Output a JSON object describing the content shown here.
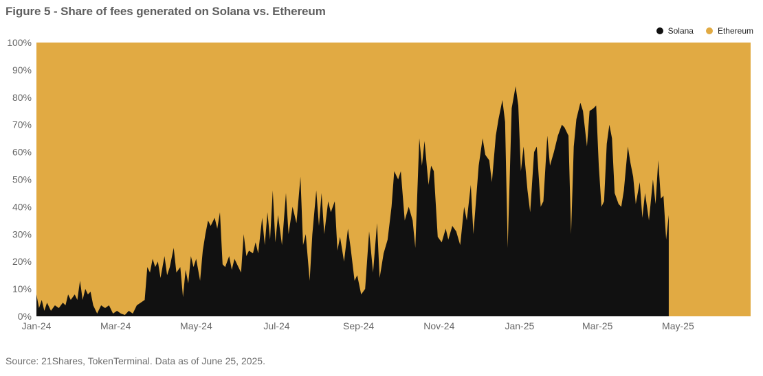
{
  "title": "Figure 5 - Share of fees generated on Solana vs. Ethereum",
  "source": "Source: 21Shares, TokenTerminal. Data as of June 25, 2025.",
  "colors": {
    "solana": "#111111",
    "ethereum": "#E1AA43",
    "axis_text": "#666666"
  },
  "chart_data": {
    "type": "area",
    "stacked": true,
    "normalized_100": true,
    "title": "Figure 5 - Share of fees generated on Solana vs. Ethereum",
    "xlabel": "",
    "ylabel": "",
    "ylim": [
      0,
      100
    ],
    "y_ticks": [
      "0%",
      "10%",
      "20%",
      "30%",
      "40%",
      "50%",
      "60%",
      "70%",
      "80%",
      "90%",
      "100%"
    ],
    "x_ticks": [
      "Jan-24",
      "Mar-24",
      "May-24",
      "Jul-24",
      "Sep-24",
      "Nov-24",
      "Jan-25",
      "Mar-25",
      "May-25"
    ],
    "x_range": [
      "2024-01-01",
      "2025-06-25"
    ],
    "grid": false,
    "legend_position": "top-right",
    "series_names": [
      "Solana",
      "Ethereum"
    ],
    "solana_share_points": [
      [
        "2024-01-01",
        8
      ],
      [
        "2024-01-03",
        3
      ],
      [
        "2024-01-05",
        6
      ],
      [
        "2024-01-07",
        2
      ],
      [
        "2024-01-09",
        5
      ],
      [
        "2024-01-12",
        2
      ],
      [
        "2024-01-15",
        4
      ],
      [
        "2024-01-18",
        3
      ],
      [
        "2024-01-21",
        5
      ],
      [
        "2024-01-23",
        4
      ],
      [
        "2024-01-25",
        8
      ],
      [
        "2024-01-27",
        6
      ],
      [
        "2024-01-30",
        8
      ],
      [
        "2024-02-01",
        6
      ],
      [
        "2024-02-03",
        13
      ],
      [
        "2024-02-05",
        6
      ],
      [
        "2024-02-07",
        10
      ],
      [
        "2024-02-09",
        8
      ],
      [
        "2024-02-11",
        9
      ],
      [
        "2024-02-13",
        4
      ],
      [
        "2024-02-16",
        1
      ],
      [
        "2024-02-19",
        4
      ],
      [
        "2024-02-22",
        3
      ],
      [
        "2024-02-25",
        4
      ],
      [
        "2024-02-28",
        1
      ],
      [
        "2024-03-02",
        2
      ],
      [
        "2024-03-05",
        1
      ],
      [
        "2024-03-08",
        0.5
      ],
      [
        "2024-03-11",
        2
      ],
      [
        "2024-03-14",
        1
      ],
      [
        "2024-03-17",
        4
      ],
      [
        "2024-03-20",
        5
      ],
      [
        "2024-03-23",
        6
      ],
      [
        "2024-03-25",
        18
      ],
      [
        "2024-03-27",
        16
      ],
      [
        "2024-03-29",
        21
      ],
      [
        "2024-03-31",
        18
      ],
      [
        "2024-04-02",
        20
      ],
      [
        "2024-04-04",
        14
      ],
      [
        "2024-04-07",
        22
      ],
      [
        "2024-04-09",
        15
      ],
      [
        "2024-04-11",
        18
      ],
      [
        "2024-04-14",
        25
      ],
      [
        "2024-04-16",
        16
      ],
      [
        "2024-04-19",
        18
      ],
      [
        "2024-04-21",
        7
      ],
      [
        "2024-04-23",
        17
      ],
      [
        "2024-04-25",
        12
      ],
      [
        "2024-04-27",
        22
      ],
      [
        "2024-04-29",
        18
      ],
      [
        "2024-05-01",
        21
      ],
      [
        "2024-05-04",
        13
      ],
      [
        "2024-05-06",
        24
      ],
      [
        "2024-05-08",
        30
      ],
      [
        "2024-05-10",
        35
      ],
      [
        "2024-05-12",
        33
      ],
      [
        "2024-05-15",
        36
      ],
      [
        "2024-05-17",
        32
      ],
      [
        "2024-05-19",
        38
      ],
      [
        "2024-05-21",
        19
      ],
      [
        "2024-05-23",
        18
      ],
      [
        "2024-05-26",
        22
      ],
      [
        "2024-05-28",
        17
      ],
      [
        "2024-05-30",
        21
      ],
      [
        "2024-06-01",
        19
      ],
      [
        "2024-06-04",
        16
      ],
      [
        "2024-06-06",
        30
      ],
      [
        "2024-06-08",
        22
      ],
      [
        "2024-06-10",
        24
      ],
      [
        "2024-06-13",
        23
      ],
      [
        "2024-06-15",
        27
      ],
      [
        "2024-06-17",
        23
      ],
      [
        "2024-06-20",
        36
      ],
      [
        "2024-06-22",
        26
      ],
      [
        "2024-06-24",
        38
      ],
      [
        "2024-06-26",
        28
      ],
      [
        "2024-06-28",
        46
      ],
      [
        "2024-06-30",
        27
      ],
      [
        "2024-07-02",
        37
      ],
      [
        "2024-07-05",
        26
      ],
      [
        "2024-07-08",
        45
      ],
      [
        "2024-07-10",
        30
      ],
      [
        "2024-07-13",
        40
      ],
      [
        "2024-07-16",
        34
      ],
      [
        "2024-07-19",
        51
      ],
      [
        "2024-07-21",
        26
      ],
      [
        "2024-07-23",
        30
      ],
      [
        "2024-07-26",
        13
      ],
      [
        "2024-07-28",
        30
      ],
      [
        "2024-07-31",
        46
      ],
      [
        "2024-08-02",
        33
      ],
      [
        "2024-08-04",
        45
      ],
      [
        "2024-08-06",
        30
      ],
      [
        "2024-08-09",
        42
      ],
      [
        "2024-08-11",
        38
      ],
      [
        "2024-08-14",
        42
      ],
      [
        "2024-08-16",
        24
      ],
      [
        "2024-08-18",
        29
      ],
      [
        "2024-08-21",
        20
      ],
      [
        "2024-08-24",
        32
      ],
      [
        "2024-08-26",
        25
      ],
      [
        "2024-08-29",
        13
      ],
      [
        "2024-08-31",
        15
      ],
      [
        "2024-09-03",
        8
      ],
      [
        "2024-09-06",
        10
      ],
      [
        "2024-09-09",
        31
      ],
      [
        "2024-09-12",
        16
      ],
      [
        "2024-09-15",
        34
      ],
      [
        "2024-09-17",
        14
      ],
      [
        "2024-09-20",
        23
      ],
      [
        "2024-09-23",
        28
      ],
      [
        "2024-09-26",
        40
      ],
      [
        "2024-09-28",
        53
      ],
      [
        "2024-10-01",
        50
      ],
      [
        "2024-10-03",
        53
      ],
      [
        "2024-10-06",
        35
      ],
      [
        "2024-10-09",
        40
      ],
      [
        "2024-10-12",
        35
      ],
      [
        "2024-10-14",
        25
      ],
      [
        "2024-10-17",
        65
      ],
      [
        "2024-10-19",
        55
      ],
      [
        "2024-10-21",
        64
      ],
      [
        "2024-10-24",
        48
      ],
      [
        "2024-10-26",
        55
      ],
      [
        "2024-10-28",
        53
      ],
      [
        "2024-10-31",
        29
      ],
      [
        "2024-11-03",
        27
      ],
      [
        "2024-11-06",
        32
      ],
      [
        "2024-11-08",
        28
      ],
      [
        "2024-11-11",
        33
      ],
      [
        "2024-11-14",
        31
      ],
      [
        "2024-11-17",
        26
      ],
      [
        "2024-11-20",
        40
      ],
      [
        "2024-11-22",
        35
      ],
      [
        "2024-11-25",
        48
      ],
      [
        "2024-11-27",
        30
      ],
      [
        "2024-12-01",
        55
      ],
      [
        "2024-12-04",
        65
      ],
      [
        "2024-12-06",
        59
      ],
      [
        "2024-12-09",
        57
      ],
      [
        "2024-12-11",
        49
      ],
      [
        "2024-12-14",
        66
      ],
      [
        "2024-12-16",
        72
      ],
      [
        "2024-12-19",
        79
      ],
      [
        "2024-12-21",
        71
      ],
      [
        "2024-12-23",
        25
      ],
      [
        "2024-12-26",
        76
      ],
      [
        "2024-12-29",
        84
      ],
      [
        "2024-12-31",
        77
      ],
      [
        "2025-01-02",
        53
      ],
      [
        "2025-01-04",
        62
      ],
      [
        "2025-01-07",
        46
      ],
      [
        "2025-01-09",
        38
      ],
      [
        "2025-01-12",
        60
      ],
      [
        "2025-01-14",
        62
      ],
      [
        "2025-01-17",
        40
      ],
      [
        "2025-01-19",
        42
      ],
      [
        "2025-01-22",
        66
      ],
      [
        "2025-01-24",
        55
      ],
      [
        "2025-01-27",
        60
      ],
      [
        "2025-01-30",
        66
      ],
      [
        "2025-02-02",
        70
      ],
      [
        "2025-02-04",
        69
      ],
      [
        "2025-02-07",
        66
      ],
      [
        "2025-02-09",
        30
      ],
      [
        "2025-02-11",
        62
      ],
      [
        "2025-02-13",
        72
      ],
      [
        "2025-02-16",
        78
      ],
      [
        "2025-02-18",
        75
      ],
      [
        "2025-02-21",
        62
      ],
      [
        "2025-02-23",
        75
      ],
      [
        "2025-02-26",
        76
      ],
      [
        "2025-02-28",
        77
      ],
      [
        "2025-03-02",
        55
      ],
      [
        "2025-03-04",
        40
      ],
      [
        "2025-03-06",
        42
      ],
      [
        "2025-03-08",
        63
      ],
      [
        "2025-03-10",
        70
      ],
      [
        "2025-03-12",
        65
      ],
      [
        "2025-03-14",
        45
      ],
      [
        "2025-03-17",
        41
      ],
      [
        "2025-03-19",
        40
      ],
      [
        "2025-03-21",
        46
      ],
      [
        "2025-03-24",
        62
      ],
      [
        "2025-03-26",
        56
      ],
      [
        "2025-03-28",
        51
      ],
      [
        "2025-03-30",
        41
      ],
      [
        "2025-04-02",
        49
      ],
      [
        "2025-04-04",
        36
      ],
      [
        "2025-04-06",
        45
      ],
      [
        "2025-04-09",
        35
      ],
      [
        "2025-04-12",
        50
      ],
      [
        "2025-04-14",
        41
      ],
      [
        "2025-04-16",
        57
      ],
      [
        "2025-04-18",
        43
      ],
      [
        "2025-04-20",
        44
      ],
      [
        "2025-04-22",
        28
      ],
      [
        "2025-04-24",
        37
      ]
    ]
  }
}
